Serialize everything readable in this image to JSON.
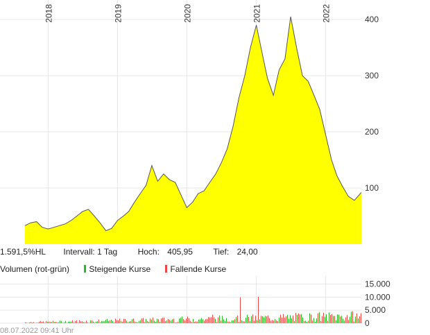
{
  "info": {
    "perf": "1.591,5%HL",
    "interval": "Intervall: 1 Tag",
    "high_label": "Hoch:",
    "high_value": "405,95",
    "low_label": "Tief:",
    "low_value": "24,00"
  },
  "volume_legend": {
    "title": "Volumen (rot-grün)",
    "rising": "Steigende Kurse",
    "falling": "Fallende Kurse"
  },
  "timestamp": "08.07.2022 09:41 Uhr",
  "colors": {
    "area_fill": "#ffff00",
    "line": "#555555",
    "rising": "#22bb22",
    "falling": "#ee4444",
    "grid": "#e6e6e6"
  },
  "chart_data": [
    {
      "type": "area",
      "x_ticks": [
        "2018",
        "2019",
        "2020",
        "2021",
        "2022"
      ],
      "x_tick_dates": [
        "2018-01-01",
        "2019-01-01",
        "2020-01-01",
        "2021-01-01",
        "2022-01-01"
      ],
      "x_range": [
        "2017-09-01",
        "2022-07-08"
      ],
      "y_ticks": [
        100,
        200,
        300,
        400
      ],
      "ylim": [
        0,
        410
      ],
      "grid": true,
      "series": [
        {
          "x": [
            "2017-09-01",
            "2017-10-01",
            "2017-11-01",
            "2017-12-01",
            "2018-01-01",
            "2018-02-01",
            "2018-03-01",
            "2018-04-01",
            "2018-05-01",
            "2018-06-01",
            "2018-07-01",
            "2018-08-01",
            "2018-09-01",
            "2018-10-01",
            "2018-11-01",
            "2018-12-01",
            "2019-01-01",
            "2019-02-01",
            "2019-03-01",
            "2019-04-01",
            "2019-05-01",
            "2019-06-01",
            "2019-07-01",
            "2019-08-01",
            "2019-09-01",
            "2019-10-01",
            "2019-11-01",
            "2019-12-01",
            "2020-01-01",
            "2020-02-01",
            "2020-03-01",
            "2020-04-01",
            "2020-05-01",
            "2020-06-01",
            "2020-07-01",
            "2020-08-01",
            "2020-09-01",
            "2020-10-01",
            "2020-11-01",
            "2020-12-01",
            "2021-01-01",
            "2021-02-01",
            "2021-03-01",
            "2021-04-01",
            "2021-05-01",
            "2021-06-01",
            "2021-07-01",
            "2021-08-01",
            "2021-09-01",
            "2021-10-01",
            "2021-11-01",
            "2021-12-01",
            "2022-01-01",
            "2022-02-01",
            "2022-03-01",
            "2022-04-01",
            "2022-05-01",
            "2022-06-01",
            "2022-07-08"
          ],
          "values": [
            33,
            38,
            40,
            30,
            27,
            30,
            33,
            36,
            42,
            50,
            58,
            62,
            50,
            38,
            24,
            28,
            42,
            50,
            58,
            75,
            90,
            105,
            140,
            112,
            125,
            115,
            110,
            88,
            65,
            75,
            90,
            95,
            110,
            125,
            145,
            170,
            210,
            260,
            300,
            350,
            390,
            340,
            295,
            265,
            310,
            330,
            405,
            350,
            300,
            290,
            265,
            240,
            195,
            150,
            122,
            102,
            85,
            78,
            92
          ]
        }
      ]
    },
    {
      "type": "bar",
      "y_ticks": [
        0,
        5000,
        10000,
        15000
      ],
      "y_tick_labels": [
        "0",
        "5.000",
        "10.000",
        "15.000"
      ],
      "ylim": [
        0,
        17000
      ],
      "series": [
        {
          "name": "Steigende Kurse",
          "color": "#22bb22"
        },
        {
          "name": "Fallende Kurse",
          "color": "#ee4444"
        }
      ]
    }
  ]
}
